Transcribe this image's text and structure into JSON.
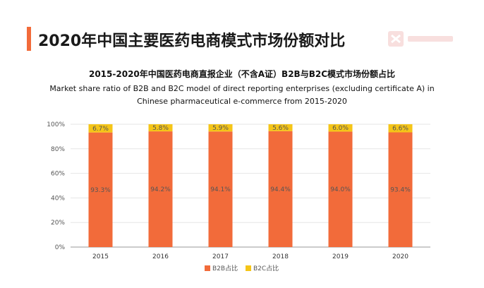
{
  "header": {
    "title": "2020年中国主要医药电商模式市场份额对比"
  },
  "colors": {
    "accent": "#f26b3a",
    "b2b": "#f26b3a",
    "b2c": "#f5c518",
    "grid": "#e6e6e6",
    "axis": "#999999"
  },
  "chart_data": {
    "type": "bar",
    "stacked": true,
    "title": "2015-2020年中国医药电商直报企业（不含A证）B2B与B2C模式市场份额占比",
    "subtitle": "Market share ratio of B2B and B2C model of direct reporting enterprises (excluding certificate A) in Chinese pharmaceutical e-commerce from 2015-2020",
    "categories": [
      "2015",
      "2016",
      "2017",
      "2018",
      "2019",
      "2020"
    ],
    "series": [
      {
        "name": "B2B占比",
        "values": [
          93.3,
          94.2,
          94.1,
          94.4,
          94.0,
          93.4
        ],
        "labels": [
          "93.3%",
          "94.2%",
          "94.1%",
          "94.4%",
          "94.0%",
          "93.4%"
        ]
      },
      {
        "name": "B2C占比",
        "values": [
          6.7,
          5.8,
          5.9,
          5.6,
          6.0,
          6.6
        ],
        "labels": [
          "6.7%",
          "5.8%",
          "5.9%",
          "5.6%",
          "6.0%",
          "6.6%"
        ]
      }
    ],
    "yticks": [
      "0%",
      "20%",
      "40%",
      "60%",
      "80%",
      "100%"
    ],
    "ylim": [
      0,
      100
    ],
    "grid": true,
    "legend_position": "bottom"
  }
}
